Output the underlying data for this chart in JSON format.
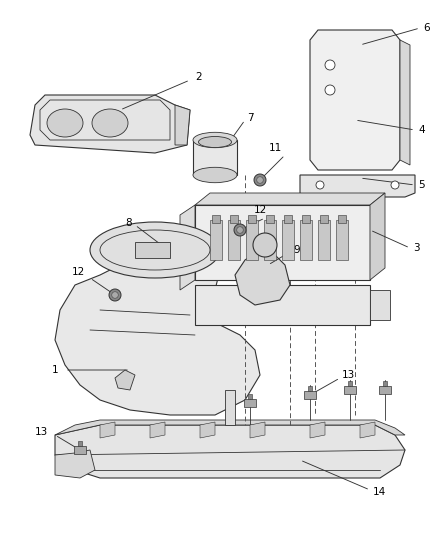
{
  "background_color": "#ffffff",
  "line_color": "#333333",
  "label_color": "#000000",
  "fig_width": 4.38,
  "fig_height": 5.33,
  "dpi": 100
}
